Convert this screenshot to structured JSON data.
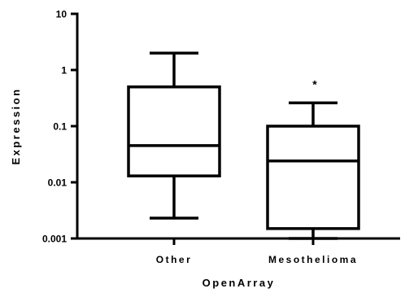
{
  "chart_data": {
    "type": "box",
    "title": "",
    "xlabel": "OpenArray",
    "ylabel": "Expression",
    "yscale": "log",
    "ylim": [
      0.001,
      10
    ],
    "y_ticks": [
      0.001,
      0.01,
      0.1,
      1,
      10
    ],
    "y_tick_labels": [
      "0.001",
      "0.01",
      "0.1",
      "1",
      "10"
    ],
    "categories": [
      "Other",
      "Mesothelioma"
    ],
    "boxes": [
      {
        "category": "Other",
        "whisker_low": 0.0023,
        "q1": 0.013,
        "median": 0.045,
        "q3": 0.5,
        "whisker_high": 2.0,
        "annotation": ""
      },
      {
        "category": "Mesothelioma",
        "whisker_low": 0.001,
        "q1": 0.0015,
        "median": 0.024,
        "q3": 0.1,
        "whisker_high": 0.26,
        "annotation": "*"
      }
    ],
    "grid": false,
    "legend": "none"
  }
}
